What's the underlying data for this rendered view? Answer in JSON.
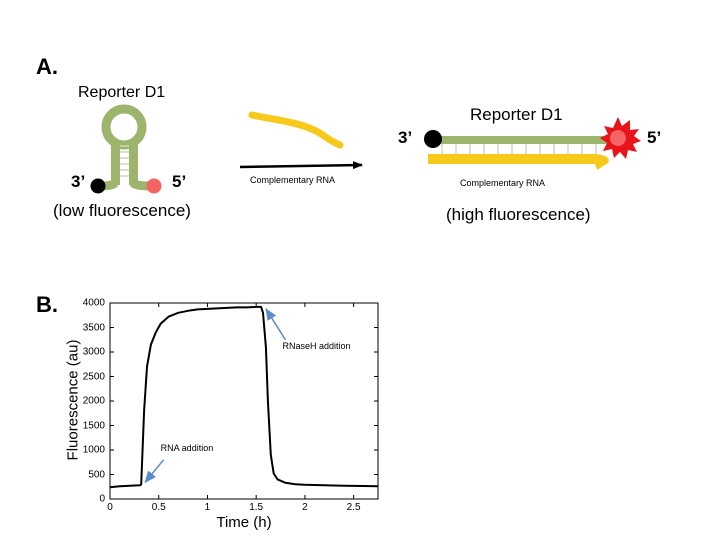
{
  "panel_a": {
    "label": "A.",
    "hairpin": {
      "name": "Reporter D1",
      "end3": "3’",
      "end5": "5’",
      "state": "(low fluorescence)"
    },
    "arrow_label": "Complementary RNA",
    "duplex": {
      "name": "Reporter D1",
      "end3": "3’",
      "end5": "5’",
      "strand_label": "Complementary RNA",
      "state": "(high fluorescence)"
    },
    "colors": {
      "reporter_strand": "#9db46d",
      "rna_strand": "#f7c91a",
      "quencher": "#000000",
      "fluorophore_dim": "#f56464",
      "fluorophore_burst": "#e8141a",
      "annotation_arrow": "#5a8ac8"
    }
  },
  "panel_b": {
    "label": "B.",
    "chart_data": {
      "type": "line",
      "xlabel": "Time (h)",
      "ylabel": "Fluorescence (au)",
      "xlim": [
        0,
        2.75
      ],
      "ylim": [
        0,
        4000
      ],
      "xticks": [
        "0",
        "0.5",
        "1",
        "1.5",
        "2",
        "2.5"
      ],
      "xtick_values": [
        0,
        0.5,
        1,
        1.5,
        2,
        2.5
      ],
      "yticks": [
        "0",
        "500",
        "1000",
        "1500",
        "2000",
        "2500",
        "3000",
        "3500",
        "4000"
      ],
      "ytick_values": [
        0,
        500,
        1000,
        1500,
        2000,
        2500,
        3000,
        3500,
        4000
      ],
      "grid": false,
      "series": [
        {
          "color": "#000000",
          "x": [
            0,
            0.1,
            0.2,
            0.31,
            0.32,
            0.35,
            0.38,
            0.42,
            0.47,
            0.52,
            0.6,
            0.7,
            0.8,
            0.9,
            1.0,
            1.1,
            1.2,
            1.3,
            1.4,
            1.5,
            1.55,
            1.57,
            1.6,
            1.62,
            1.65,
            1.68,
            1.72,
            1.8,
            1.9,
            2.0,
            2.2,
            2.4,
            2.6,
            2.75
          ],
          "y": [
            240,
            260,
            270,
            280,
            300,
            1800,
            2700,
            3150,
            3400,
            3580,
            3720,
            3800,
            3840,
            3870,
            3880,
            3890,
            3900,
            3910,
            3910,
            3920,
            3920,
            3800,
            3100,
            2000,
            900,
            520,
            400,
            330,
            300,
            290,
            280,
            270,
            265,
            260
          ]
        }
      ],
      "annotations": [
        {
          "text": "RNA addition",
          "x": 0.33,
          "y": 280
        },
        {
          "text": "RNaseH addition",
          "x": 1.58,
          "y": 3920
        }
      ]
    }
  }
}
